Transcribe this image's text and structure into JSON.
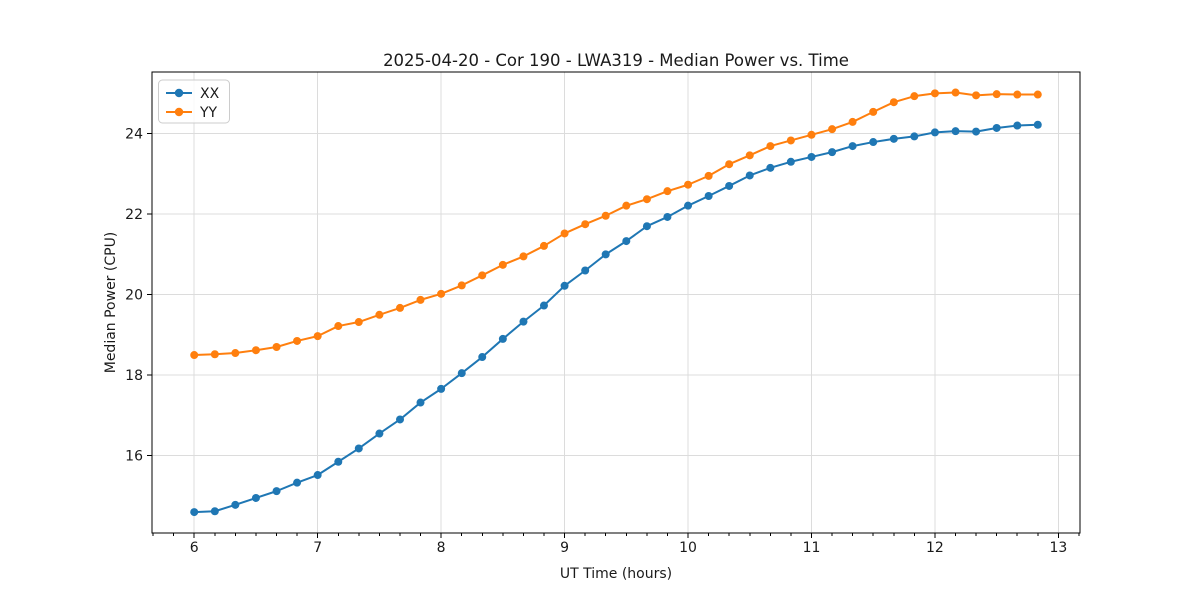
{
  "chart_data": {
    "type": "line",
    "title": "2025-04-20 - Cor 190 - LWA319 - Median Power vs. Time",
    "xlabel": "UT Time (hours)",
    "ylabel": "Median Power (CPU)",
    "xlim": [
      5.658,
      13.175
    ],
    "ylim": [
      14.08,
      25.53
    ],
    "x_ticks": [
      6,
      7,
      8,
      9,
      10,
      11,
      12,
      13
    ],
    "y_ticks": [
      16,
      18,
      20,
      22,
      24
    ],
    "x_minor_tick_step": 0.166667,
    "grid": true,
    "legend_position": "upper left",
    "grid_color": "#dcdcdc",
    "spine_color": "#000000",
    "x": [
      6.0,
      6.167,
      6.333,
      6.5,
      6.667,
      6.833,
      7.0,
      7.167,
      7.333,
      7.5,
      7.667,
      7.833,
      8.0,
      8.167,
      8.333,
      8.5,
      8.667,
      8.833,
      9.0,
      9.167,
      9.333,
      9.5,
      9.667,
      9.833,
      10.0,
      10.167,
      10.333,
      10.5,
      10.667,
      10.833,
      11.0,
      11.167,
      11.333,
      11.5,
      11.667,
      11.833,
      12.0,
      12.167,
      12.333,
      12.5,
      12.667,
      12.833
    ],
    "series": [
      {
        "name": "XX",
        "color": "#1f77b4",
        "values": [
          14.6,
          14.62,
          14.78,
          14.95,
          15.12,
          15.33,
          15.52,
          15.85,
          16.18,
          16.55,
          16.9,
          17.32,
          17.66,
          18.05,
          18.45,
          18.9,
          19.33,
          19.73,
          20.22,
          20.6,
          21.0,
          21.33,
          21.7,
          21.93,
          22.21,
          22.45,
          22.7,
          22.96,
          23.15,
          23.3,
          23.42,
          23.54,
          23.69,
          23.79,
          23.87,
          23.93,
          24.03,
          24.06,
          24.05,
          24.14,
          24.2,
          24.22
        ]
      },
      {
        "name": "YY",
        "color": "#ff7f0e",
        "values": [
          18.5,
          18.52,
          18.55,
          18.62,
          18.7,
          18.85,
          18.97,
          19.22,
          19.32,
          19.5,
          19.67,
          19.87,
          20.02,
          20.23,
          20.48,
          20.74,
          20.95,
          21.21,
          21.52,
          21.75,
          21.96,
          22.21,
          22.37,
          22.57,
          22.73,
          22.95,
          23.24,
          23.46,
          23.69,
          23.83,
          23.97,
          24.11,
          24.29,
          24.54,
          24.78,
          24.93,
          25.0,
          25.02,
          24.95,
          24.98,
          24.97,
          24.97
        ]
      }
    ]
  }
}
